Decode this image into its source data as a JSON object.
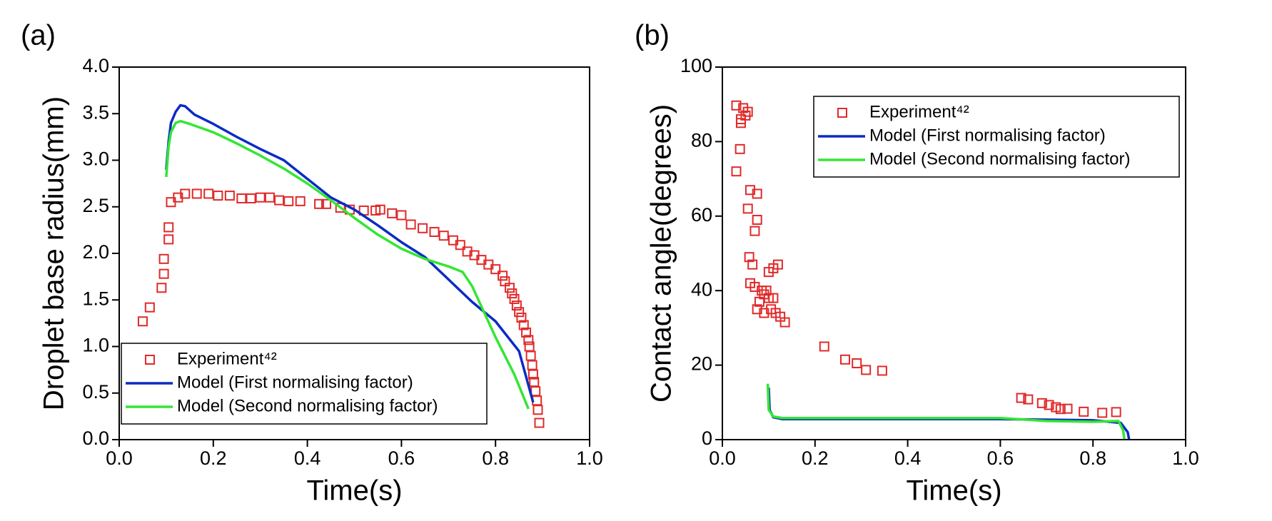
{
  "chart_data": [
    {
      "type": "line",
      "label": "(a)",
      "x_label": "Time(s)",
      "y_label": "Droplet base radius(mm)",
      "xlim": [
        0,
        1
      ],
      "ylim": [
        0,
        4
      ],
      "xticks": [
        {
          "value": 0,
          "label": "0.0"
        },
        {
          "value": 0.2,
          "label": "0.2"
        },
        {
          "value": 0.4,
          "label": "0.4"
        },
        {
          "value": 0.6,
          "label": "0.6"
        },
        {
          "value": 0.8,
          "label": "0.8"
        },
        {
          "value": 1,
          "label": "1.0"
        }
      ],
      "yticks": [
        {
          "value": 0,
          "label": "0.0"
        },
        {
          "value": 0.5,
          "label": "0.5"
        },
        {
          "value": 1,
          "label": "1.0"
        },
        {
          "value": 1.5,
          "label": "1.5"
        },
        {
          "value": 2,
          "label": "2.0"
        },
        {
          "value": 2.5,
          "label": "2.5"
        },
        {
          "value": 3,
          "label": "3.0"
        },
        {
          "value": 3.5,
          "label": "3.5"
        },
        {
          "value": 4,
          "label": "4.0"
        }
      ],
      "legend": "lower left",
      "series": [
        {
          "name": "Experiment⁴²",
          "color": "#e02a2a",
          "marker": "square",
          "x": [
            0.05,
            0.065,
            0.09,
            0.095,
            0.095,
            0.105,
            0.105,
            0.11,
            0.125,
            0.14,
            0.165,
            0.19,
            0.21,
            0.235,
            0.26,
            0.28,
            0.3,
            0.32,
            0.34,
            0.36,
            0.385,
            0.425,
            0.44,
            0.47,
            0.49,
            0.52,
            0.545,
            0.555,
            0.58,
            0.6,
            0.62,
            0.645,
            0.67,
            0.69,
            0.71,
            0.725,
            0.74,
            0.755,
            0.77,
            0.785,
            0.8,
            0.815,
            0.82,
            0.83,
            0.835,
            0.84,
            0.845,
            0.85,
            0.855,
            0.86,
            0.865,
            0.87,
            0.872,
            0.875,
            0.878,
            0.88,
            0.882,
            0.885,
            0.888,
            0.89,
            0.893
          ],
          "values": [
            1.27,
            1.42,
            1.63,
            1.78,
            1.94,
            2.15,
            2.28,
            2.55,
            2.6,
            2.64,
            2.64,
            2.64,
            2.62,
            2.62,
            2.59,
            2.59,
            2.6,
            2.6,
            2.57,
            2.56,
            2.56,
            2.53,
            2.53,
            2.49,
            2.47,
            2.46,
            2.46,
            2.47,
            2.43,
            2.41,
            2.31,
            2.27,
            2.23,
            2.19,
            2.14,
            2.09,
            2.02,
            1.98,
            1.93,
            1.88,
            1.83,
            1.76,
            1.7,
            1.63,
            1.57,
            1.51,
            1.44,
            1.37,
            1.31,
            1.23,
            1.15,
            1.07,
            1.0,
            0.9,
            0.8,
            0.7,
            0.62,
            0.52,
            0.42,
            0.32,
            0.18
          ]
        },
        {
          "name": "Model (First normalising factor)",
          "color": "#0b2bc4",
          "x": [
            0.1,
            0.105,
            0.11,
            0.12,
            0.13,
            0.14,
            0.16,
            0.2,
            0.25,
            0.3,
            0.35,
            0.4,
            0.45,
            0.5,
            0.55,
            0.6,
            0.65,
            0.7,
            0.75,
            0.8,
            0.85,
            0.88
          ],
          "values": [
            2.9,
            3.2,
            3.4,
            3.52,
            3.59,
            3.58,
            3.49,
            3.39,
            3.25,
            3.12,
            3.0,
            2.8,
            2.6,
            2.47,
            2.3,
            2.12,
            1.96,
            1.72,
            1.48,
            1.27,
            0.95,
            0.4
          ]
        },
        {
          "name": "Model (Second normalising factor)",
          "color": "#33e633",
          "x": [
            0.1,
            0.105,
            0.11,
            0.12,
            0.13,
            0.15,
            0.2,
            0.25,
            0.3,
            0.35,
            0.4,
            0.45,
            0.5,
            0.55,
            0.6,
            0.65,
            0.7,
            0.73,
            0.75,
            0.8,
            0.84,
            0.87
          ],
          "values": [
            2.82,
            3.15,
            3.3,
            3.4,
            3.42,
            3.39,
            3.3,
            3.18,
            3.05,
            2.91,
            2.75,
            2.57,
            2.38,
            2.2,
            2.05,
            1.94,
            1.86,
            1.8,
            1.65,
            1.1,
            0.7,
            0.33
          ]
        }
      ]
    },
    {
      "type": "line",
      "label": "(b)",
      "x_label": "Time(s)",
      "y_label": "Contact angle(degrees)",
      "xlim": [
        0,
        1
      ],
      "ylim": [
        0,
        100
      ],
      "xticks": [
        {
          "value": 0,
          "label": "0.0"
        },
        {
          "value": 0.2,
          "label": "0.2"
        },
        {
          "value": 0.4,
          "label": "0.4"
        },
        {
          "value": 0.6,
          "label": "0.6"
        },
        {
          "value": 0.8,
          "label": "0.8"
        },
        {
          "value": 1,
          "label": "1.0"
        }
      ],
      "yticks": [
        0,
        20,
        40,
        60,
        80,
        100
      ],
      "legend": "upper right",
      "series": [
        {
          "name": "Experiment⁴²",
          "color": "#e02a2a",
          "marker": "square",
          "x": [
            0.03,
            0.03,
            0.038,
            0.04,
            0.04,
            0.045,
            0.05,
            0.055,
            0.055,
            0.058,
            0.06,
            0.06,
            0.065,
            0.07,
            0.075,
            0.075,
            0.07,
            0.075,
            0.08,
            0.085,
            0.09,
            0.09,
            0.095,
            0.1,
            0.1,
            0.105,
            0.11,
            0.11,
            0.115,
            0.12,
            0.125,
            0.135,
            0.22,
            0.265,
            0.29,
            0.31,
            0.345,
            0.645,
            0.66,
            0.69,
            0.705,
            0.72,
            0.73,
            0.745,
            0.78,
            0.82,
            0.85
          ],
          "values": [
            89.7,
            72,
            78,
            86,
            85,
            89,
            87,
            88,
            62,
            49,
            67,
            42,
            47,
            41,
            66,
            59,
            56,
            35,
            37,
            40,
            39,
            34,
            40,
            45,
            38,
            35,
            46,
            38,
            34,
            47,
            33,
            31.5,
            25,
            21.5,
            20.5,
            18.7,
            18.5,
            11.2,
            10.8,
            9.8,
            9.3,
            8.7,
            8.2,
            8.3,
            7.5,
            7.2,
            7.4
          ]
        },
        {
          "name": "Model (First normalising factor)",
          "color": "#0b2bc4",
          "x": [
            0.1,
            0.102,
            0.11,
            0.13,
            0.2,
            0.4,
            0.6,
            0.8,
            0.86,
            0.875,
            0.878
          ],
          "values": [
            14,
            8,
            6,
            5.5,
            5.5,
            5.5,
            5.5,
            5.2,
            4.5,
            2,
            0
          ]
        },
        {
          "name": "Model (Second normalising factor)",
          "color": "#33e633",
          "x": [
            0.098,
            0.1,
            0.11,
            0.13,
            0.2,
            0.4,
            0.6,
            0.7,
            0.8,
            0.855,
            0.865,
            0.868
          ],
          "values": [
            15,
            8,
            6.2,
            5.8,
            5.8,
            5.8,
            5.8,
            5,
            4.8,
            5,
            2.5,
            0
          ]
        }
      ]
    }
  ]
}
